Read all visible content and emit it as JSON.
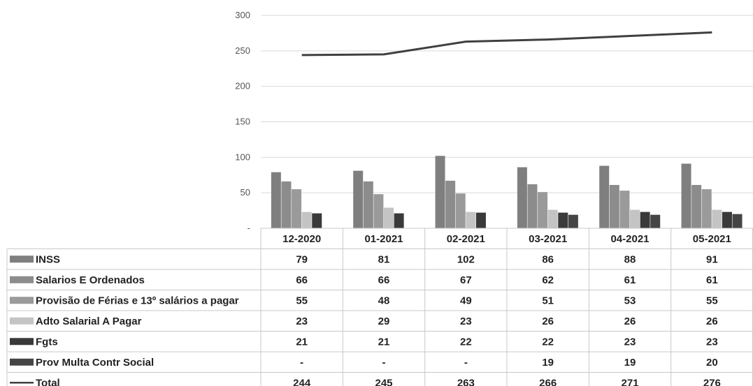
{
  "chart_data": {
    "type": "bar",
    "categories": [
      "12-2020",
      "01-2021",
      "02-2021",
      "03-2021",
      "04-2021",
      "05-2021"
    ],
    "ylim": [
      0,
      300
    ],
    "yticks": [
      {
        "value": 0,
        "label": "-"
      },
      {
        "value": 50,
        "label": "50"
      },
      {
        "value": 100,
        "label": "100"
      },
      {
        "value": 150,
        "label": "150"
      },
      {
        "value": 200,
        "label": "200"
      },
      {
        "value": 250,
        "label": "250"
      },
      {
        "value": 300,
        "label": "300"
      }
    ],
    "grid": true,
    "legend": "data-table",
    "series": [
      {
        "name": "INSS",
        "type": "bar",
        "color": "#7f7f7f",
        "values": [
          79,
          81,
          102,
          86,
          88,
          91
        ],
        "labels": [
          "79",
          "81",
          "102",
          "86",
          "88",
          "91"
        ]
      },
      {
        "name": "Salarios E Ordenados",
        "type": "bar",
        "color": "#8c8c8c",
        "values": [
          66,
          66,
          67,
          62,
          61,
          61
        ],
        "labels": [
          "66",
          "66",
          "67",
          "62",
          "61",
          "61"
        ]
      },
      {
        "name": "Provisão de Férias e 13º salários a pagar",
        "type": "bar",
        "color": "#9a9a9a",
        "values": [
          55,
          48,
          49,
          51,
          53,
          55
        ],
        "labels": [
          "55",
          "48",
          "49",
          "51",
          "53",
          "55"
        ]
      },
      {
        "name": "Adto Salarial A Pagar",
        "type": "bar",
        "color": "#c4c4c4",
        "values": [
          23,
          29,
          23,
          26,
          26,
          26
        ],
        "labels": [
          "23",
          "29",
          "23",
          "26",
          "26",
          "26"
        ]
      },
      {
        "name": "Fgts",
        "type": "bar",
        "color": "#3a3a3a",
        "values": [
          21,
          21,
          22,
          22,
          23,
          23
        ],
        "labels": [
          "21",
          "21",
          "22",
          "22",
          "23",
          "23"
        ]
      },
      {
        "name": "Prov Multa Contr Social",
        "type": "bar",
        "color": "#454545",
        "values": [
          0,
          0,
          0,
          19,
          19,
          20
        ],
        "labels": [
          "-",
          "-",
          "-",
          "19",
          "19",
          "20"
        ]
      },
      {
        "name": "Total",
        "type": "line",
        "color": "#404040",
        "values": [
          244,
          245,
          263,
          266,
          271,
          276
        ],
        "labels": [
          "244",
          "245",
          "263",
          "266",
          "271",
          "276"
        ]
      }
    ]
  }
}
